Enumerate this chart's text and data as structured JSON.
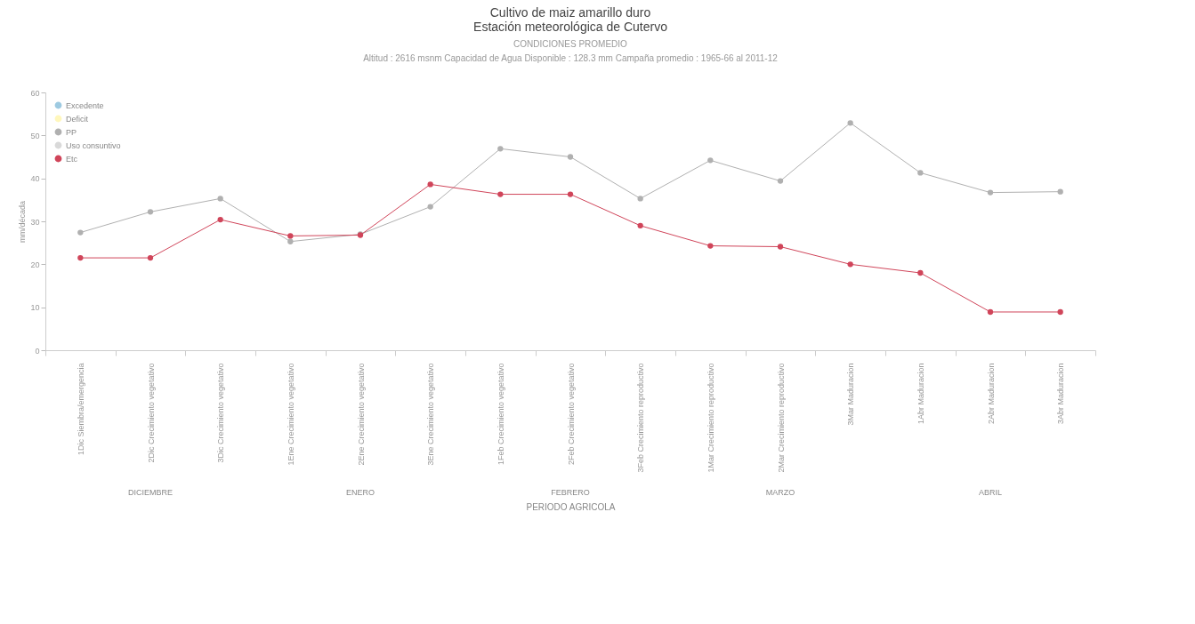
{
  "chart_data": {
    "type": "line",
    "title": "Cultivo de maiz amarillo duro\nEstación meteorológica de Cutervo",
    "subtitle": "CONDICIONES PROMEDIO",
    "annotations": [
      "Altitud : 2616 msnm        Capacidad de Agua Disponible : 128.3 mm        Campaña promedio : 1965-66 al 2011-12",
      "DICIEMBRE",
      "ENERO",
      "FEBRERO",
      "MARZO",
      "ABRIL"
    ],
    "xlabel": "PERIODO AGRICOLA",
    "ylabel": "mm/década",
    "categories": [
      "1Dic Siembra/emergencia",
      "2Dic Crecimiento vegetativo",
      "3Dic Crecimiento vegetativo",
      "1Ene Crecimiento vegetativo",
      "2Ene Crecimiento vegetativo",
      "3Ene Crecimiento vegetativo",
      "1Feb Crecimiento vegetativo",
      "2Feb Crecimiento vegetativo",
      "3Feb Crecimiento reproductivo",
      "1Mar Crecimiento reproductivo",
      "2Mar Crecimiento reproductivo",
      "3Mar Maduracion",
      "1Abr Maduracion",
      "2Abr Maduracion",
      "3Abr Maduracion"
    ],
    "series": [
      {
        "name": "Excedente",
        "color": "#9ecae1",
        "values": [
          null,
          null,
          null,
          null,
          null,
          null,
          null,
          null,
          null,
          null,
          null,
          null,
          null,
          null,
          null
        ]
      },
      {
        "name": "Deficit",
        "color": "#fff7bc",
        "values": [
          null,
          null,
          null,
          null,
          null,
          null,
          null,
          null,
          null,
          null,
          null,
          null,
          null,
          null,
          null
        ]
      },
      {
        "name": "PP",
        "color": "#b0b0b0",
        "values": [
          27.4,
          32.2,
          35.3,
          25.3,
          27,
          33.4,
          46.9,
          45,
          35.3,
          44.2,
          39.4,
          52.9,
          41.3,
          36.7,
          36.9
        ]
      },
      {
        "name": "Uso consuntivo",
        "color": "#d9d9d9",
        "values": [
          null,
          null,
          null,
          null,
          null,
          null,
          null,
          null,
          null,
          null,
          null,
          null,
          null,
          null,
          null
        ]
      },
      {
        "name": "Etc",
        "color": "#d0455a",
        "values": [
          21.5,
          21.5,
          30.4,
          26.6,
          26.8,
          38.6,
          36.3,
          36.3,
          29,
          24.3,
          24.1,
          20,
          18,
          8.9,
          8.9
        ]
      }
    ],
    "ylim": [
      0,
      60
    ],
    "yticks": [
      0,
      10,
      20,
      30,
      40,
      50,
      60
    ],
    "grid": false,
    "legend": "top left",
    "marker": "circle"
  }
}
